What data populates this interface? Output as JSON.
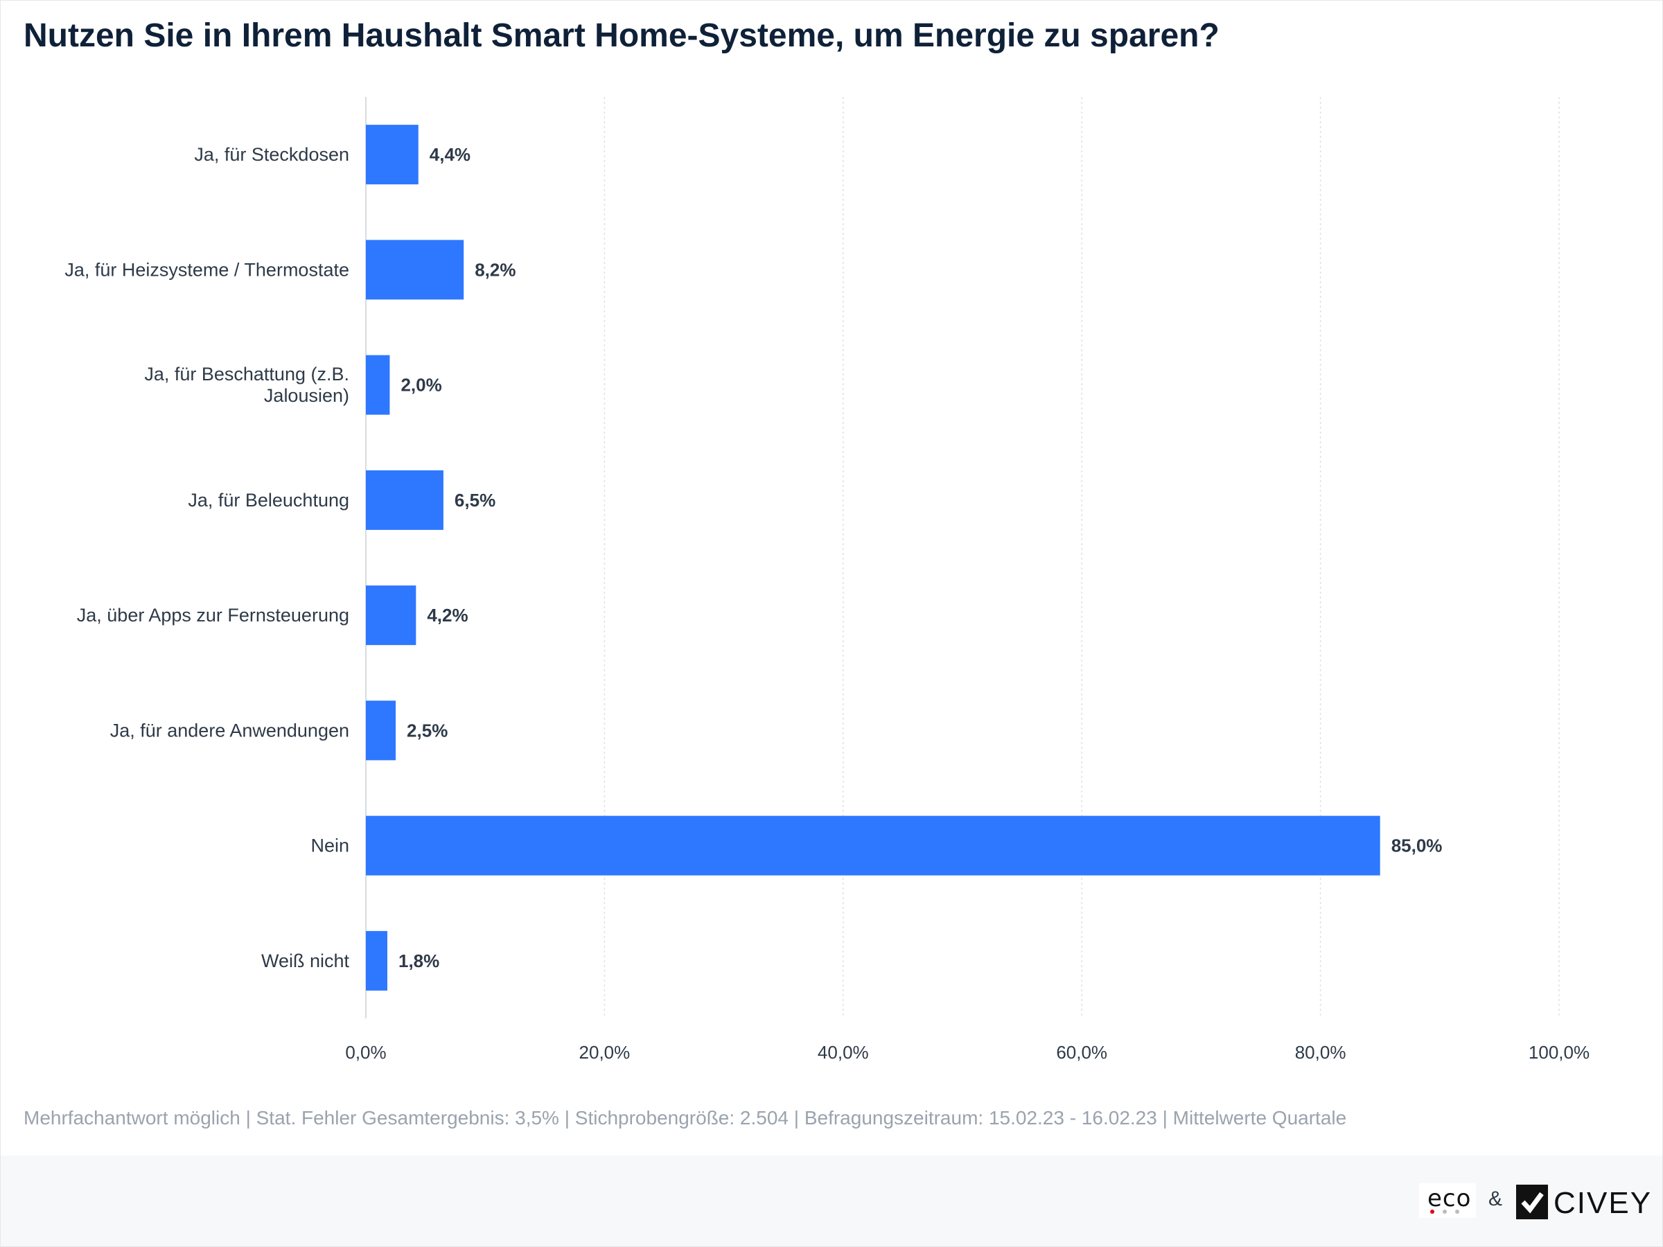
{
  "title": "Nutzen Sie in Ihrem Haushalt Smart Home-Systeme, um Energie zu sparen?",
  "chart_data": {
    "type": "bar",
    "orientation": "horizontal",
    "categories": [
      [
        "Ja, für Steckdosen"
      ],
      [
        "Ja, für Heizsysteme / Thermostate"
      ],
      [
        "Ja, für Beschattung (z.B.",
        "Jalousien)"
      ],
      [
        "Ja, für Beleuchtung"
      ],
      [
        "Ja, über Apps zur Fernsteuerung"
      ],
      [
        "Ja, für andere Anwendungen"
      ],
      [
        "Nein"
      ],
      [
        "Weiß nicht"
      ]
    ],
    "values": [
      4.4,
      8.2,
      2.0,
      6.5,
      4.2,
      2.5,
      85.0,
      1.8
    ],
    "value_labels": [
      "4,4%",
      "8,2%",
      "2,0%",
      "6,5%",
      "4,2%",
      "2,5%",
      "85,0%",
      "1,8%"
    ],
    "xlim": [
      0,
      100
    ],
    "ticks": [
      0,
      20,
      40,
      60,
      80,
      100
    ],
    "tick_labels": [
      "0,0%",
      "20,0%",
      "40,0%",
      "60,0%",
      "80,0%",
      "100,0%"
    ],
    "grid": true,
    "bar_color": "#2e78ff"
  },
  "footnote": "Mehrfachantwort möglich | Stat. Fehler Gesamtergebnis: 3,5% | Stichprobengröße: 2.504 | Befragungszeitraum: 15.02.23 - 16.02.23 | Mittelwerte Quartale",
  "footer": {
    "logo_eco": "eco",
    "ampersand": "&",
    "logo_civey": "CIVEY"
  }
}
